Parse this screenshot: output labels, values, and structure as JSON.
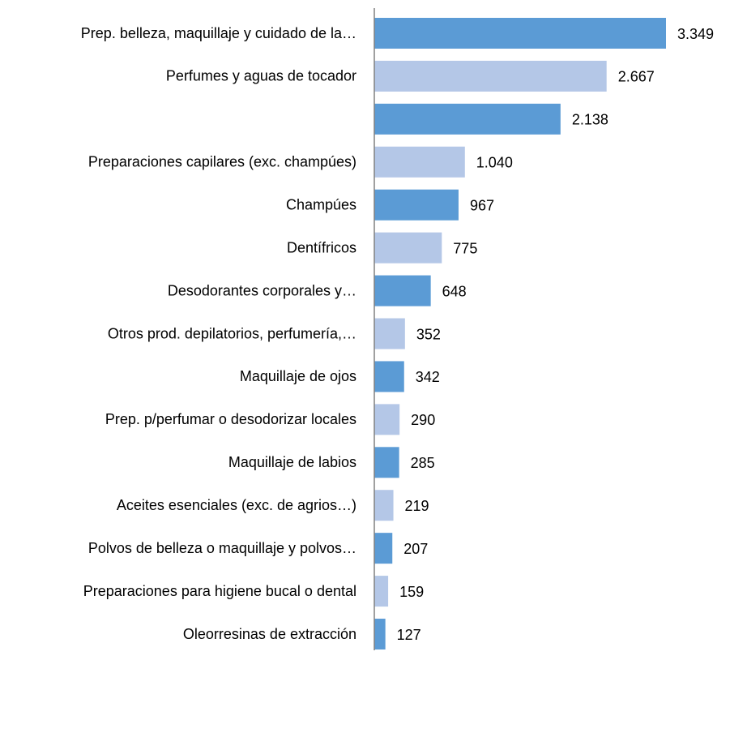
{
  "chart_data": {
    "type": "bar",
    "orientation": "horizontal",
    "categories": [
      "Prep. belleza, maquillaje y cuidado de la…",
      "Perfumes y aguas de tocador",
      null,
      "Preparaciones capilares (exc. champúes)",
      "Champúes",
      "Dentífricos",
      "Desodorantes corporales y…",
      "Otros prod. depilatorios, perfumería,…",
      "Maquillaje de  ojos",
      "Prep. p/perfumar o desodorizar locales",
      "Maquillaje de labios",
      "Aceites esenciales (exc. de agrios…)",
      "Polvos de belleza o maquillaje y polvos…",
      "Preparaciones para higiene bucal o dental",
      "Oleorresinas de extracción"
    ],
    "values": [
      3349,
      2667,
      2138,
      1040,
      967,
      775,
      648,
      352,
      342,
      290,
      285,
      219,
      207,
      159,
      127
    ],
    "value_labels": [
      "3.349",
      "2.667",
      "2.138",
      "1.040",
      "967",
      "775",
      "648",
      "352",
      "342",
      "290",
      "285",
      "219",
      "207",
      "159",
      "127"
    ],
    "colors": [
      "#5b9bd5",
      "#b4c7e7",
      "#5b9bd5",
      "#b4c7e7",
      "#5b9bd5",
      "#b4c7e7",
      "#5b9bd5",
      "#b4c7e7",
      "#5b9bd5",
      "#b4c7e7",
      "#5b9bd5",
      "#b4c7e7",
      "#5b9bd5",
      "#b4c7e7",
      "#5b9bd5"
    ]
  }
}
